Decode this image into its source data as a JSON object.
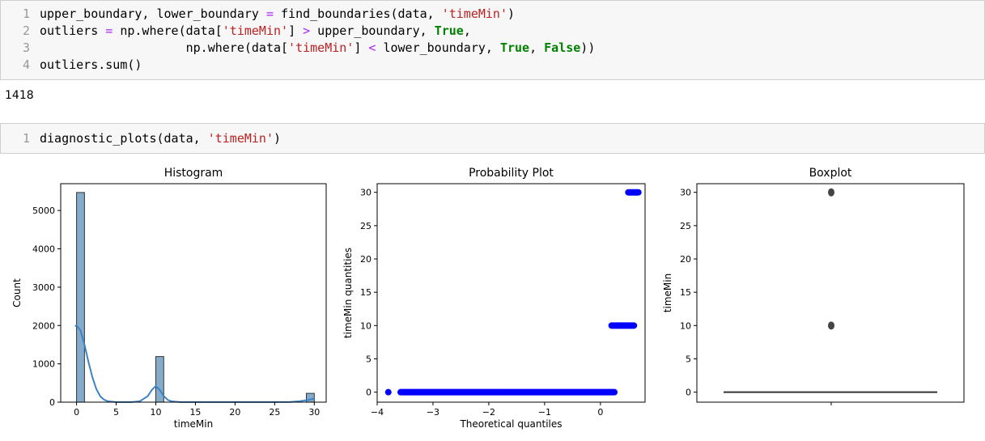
{
  "cell1": {
    "line_numbers": [
      "1",
      "2",
      "3",
      "4"
    ],
    "lines": [
      [
        {
          "t": "txt",
          "v": "upper_boundary, lower_boundary "
        },
        {
          "t": "op",
          "v": "="
        },
        {
          "t": "txt",
          "v": " find_boundaries(data, "
        },
        {
          "t": "str",
          "v": "'timeMin'"
        },
        {
          "t": "txt",
          "v": ")"
        }
      ],
      [
        {
          "t": "txt",
          "v": "outliers "
        },
        {
          "t": "op",
          "v": "="
        },
        {
          "t": "txt",
          "v": " np.where(data["
        },
        {
          "t": "str",
          "v": "'timeMin'"
        },
        {
          "t": "txt",
          "v": "] "
        },
        {
          "t": "op",
          "v": ">"
        },
        {
          "t": "txt",
          "v": " upper_boundary, "
        },
        {
          "t": "kw",
          "v": "True"
        },
        {
          "t": "txt",
          "v": ","
        }
      ],
      [
        {
          "t": "txt",
          "v": "                    np.where(data["
        },
        {
          "t": "str",
          "v": "'timeMin'"
        },
        {
          "t": "txt",
          "v": "] "
        },
        {
          "t": "op",
          "v": "<"
        },
        {
          "t": "txt",
          "v": " lower_boundary, "
        },
        {
          "t": "kw",
          "v": "True"
        },
        {
          "t": "txt",
          "v": ", "
        },
        {
          "t": "kw",
          "v": "False"
        },
        {
          "t": "txt",
          "v": "))"
        }
      ],
      [
        {
          "t": "txt",
          "v": "outliers.sum()"
        }
      ]
    ]
  },
  "output1": "1418",
  "cell2": {
    "line_numbers": [
      "1"
    ],
    "lines": [
      [
        {
          "t": "txt",
          "v": "diagnostic_plots(data, "
        },
        {
          "t": "str",
          "v": "'timeMin'"
        },
        {
          "t": "txt",
          "v": ")"
        }
      ]
    ]
  },
  "colors": {
    "hist_bar": "#6f9cc1",
    "kde": "#3b82c4",
    "prob_points": "#0000ff",
    "box_line": "#333333"
  },
  "chart_data": [
    {
      "type": "bar",
      "title": "Histogram",
      "xlabel": "timeMin",
      "ylabel": "Count",
      "xlim": [
        -2,
        31.5
      ],
      "ylim": [
        0,
        5700
      ],
      "xticks": [
        0,
        5,
        10,
        15,
        20,
        25,
        30
      ],
      "yticks": [
        0,
        1000,
        2000,
        3000,
        4000,
        5000
      ],
      "bins": [
        {
          "x0": 0,
          "x1": 1,
          "count": 5470
        },
        {
          "x0": 10,
          "x1": 11,
          "count": 1190
        },
        {
          "x0": 29,
          "x1": 30,
          "count": 230
        }
      ],
      "kde": {
        "x": [
          -0.2,
          0,
          0.5,
          1,
          1.5,
          2,
          2.5,
          3,
          3.5,
          4,
          5,
          6,
          7,
          8,
          9,
          9.5,
          10,
          10.5,
          11,
          11.5,
          12,
          13,
          15,
          20,
          25,
          27,
          28,
          29,
          30
        ],
        "y": [
          1980,
          2000,
          1870,
          1500,
          1050,
          650,
          340,
          150,
          60,
          20,
          3,
          2,
          3,
          25,
          160,
          320,
          420,
          320,
          160,
          60,
          20,
          3,
          2,
          2,
          2,
          5,
          20,
          50,
          90
        ]
      }
    },
    {
      "type": "scatter",
      "title": "Probability Plot",
      "xlabel": "Theoretical quantiles",
      "ylabel": "timeMin quantities",
      "xlim": [
        -4,
        0.8
      ],
      "ylim": [
        -1.5,
        31.3
      ],
      "xticks": [
        -4,
        -3,
        -2,
        -1,
        0
      ],
      "yticks": [
        0,
        5,
        10,
        15,
        20,
        25,
        30
      ],
      "segments": [
        {
          "x0": -3.8,
          "x1": -3.8,
          "y": 0
        },
        {
          "x0": -3.58,
          "x1": 0.25,
          "y": 0
        },
        {
          "x0": 0.2,
          "x1": 0.6,
          "y": 10
        },
        {
          "x0": 0.5,
          "x1": 0.68,
          "y": 30
        }
      ]
    },
    {
      "type": "box",
      "title": "Boxplot",
      "ylabel": "timeMin",
      "ylim": [
        -1.5,
        31.3
      ],
      "yticks": [
        0,
        5,
        10,
        15,
        20,
        25,
        30
      ],
      "box": {
        "q1": 0,
        "median": 0,
        "q3": 0,
        "whisker_low": 0,
        "whisker_high": 0
      },
      "outliers": [
        10,
        30
      ]
    }
  ]
}
